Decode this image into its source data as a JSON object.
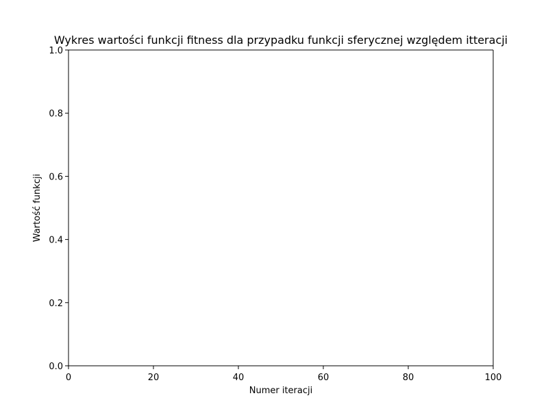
{
  "chart_data": {
    "type": "line",
    "title": "Wykres wartości funkcji fitness dla przypadku funkcji sferycznej względem itteracji",
    "xlabel": "Numer iteracji",
    "ylabel": "Wartość funkcji",
    "xlim": [
      0,
      100
    ],
    "ylim": [
      0,
      1
    ],
    "x_ticks": [
      0,
      20,
      40,
      60,
      80,
      100
    ],
    "y_ticks": [
      0.0,
      0.2,
      0.4,
      0.6,
      0.8,
      1.0
    ],
    "x_tick_labels": [
      "0",
      "20",
      "40",
      "60",
      "80",
      "100"
    ],
    "y_tick_labels": [
      "0.0",
      "0.2",
      "0.4",
      "0.6",
      "0.8",
      "1.0"
    ],
    "series": [],
    "grid": false,
    "legend": "none"
  }
}
